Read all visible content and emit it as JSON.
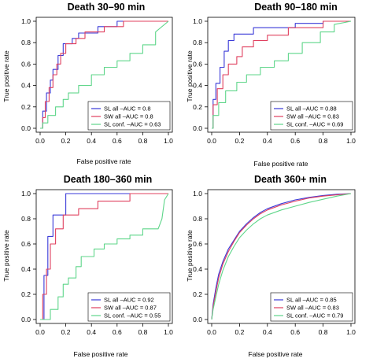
{
  "colors": {
    "sl_all": "#3a3ad8",
    "sw_all": "#e0405f",
    "sl_conf": "#5fd68a"
  },
  "chart_data": [
    {
      "type": "line",
      "title": "Death 30–90 min",
      "xlabel": "False positive rate",
      "ylabel": "True positive rate",
      "xlim": [
        0,
        1
      ],
      "ylim": [
        0,
        1
      ],
      "xticks": [
        "0.0",
        "0.2",
        "0.4",
        "0.6",
        "0.8",
        "1.0"
      ],
      "yticks": [
        "0.0",
        "0.2",
        "0.4",
        "0.6",
        "0.8",
        "1.0"
      ],
      "grid": false,
      "legend_position": "bottom-right",
      "series": [
        {
          "name": "SL all –AUC = 0.8",
          "color_key": "sl_all",
          "x": [
            0,
            0.02,
            0.02,
            0.05,
            0.05,
            0.08,
            0.08,
            0.1,
            0.1,
            0.14,
            0.14,
            0.18,
            0.18,
            0.25,
            0.25,
            0.3,
            0.3,
            0.45,
            0.45,
            0.6,
            0.6,
            0.8,
            0.8,
            1.0
          ],
          "y": [
            0,
            0,
            0.16,
            0.16,
            0.33,
            0.33,
            0.45,
            0.45,
            0.55,
            0.55,
            0.68,
            0.68,
            0.79,
            0.79,
            0.84,
            0.84,
            0.89,
            0.89,
            0.95,
            0.95,
            1.0,
            1.0,
            1.0,
            1.0
          ]
        },
        {
          "name": "SW all –AUC = 0.8",
          "color_key": "sw_all",
          "x": [
            0,
            0.02,
            0.02,
            0.04,
            0.04,
            0.07,
            0.07,
            0.1,
            0.1,
            0.13,
            0.13,
            0.16,
            0.16,
            0.2,
            0.2,
            0.28,
            0.28,
            0.35,
            0.35,
            0.5,
            0.5,
            0.65,
            0.65,
            0.8,
            0.8,
            1.0
          ],
          "y": [
            0,
            0,
            0.1,
            0.1,
            0.25,
            0.25,
            0.38,
            0.38,
            0.5,
            0.5,
            0.6,
            0.6,
            0.7,
            0.7,
            0.79,
            0.79,
            0.84,
            0.84,
            0.9,
            0.9,
            0.95,
            0.95,
            1.0,
            1.0,
            1.0,
            1.0
          ]
        },
        {
          "name": "SL conf. –AUC = 0.63",
          "color_key": "sl_conf",
          "x": [
            0,
            0.02,
            0.02,
            0.06,
            0.06,
            0.12,
            0.12,
            0.18,
            0.18,
            0.22,
            0.22,
            0.3,
            0.3,
            0.4,
            0.4,
            0.5,
            0.5,
            0.6,
            0.6,
            0.7,
            0.7,
            0.8,
            0.8,
            0.9,
            0.9,
            1.0
          ],
          "y": [
            0,
            0,
            0.05,
            0.05,
            0.12,
            0.12,
            0.2,
            0.2,
            0.27,
            0.27,
            0.33,
            0.33,
            0.4,
            0.4,
            0.5,
            0.5,
            0.57,
            0.57,
            0.63,
            0.63,
            0.7,
            0.7,
            0.78,
            0.78,
            0.9,
            1.0
          ]
        }
      ]
    },
    {
      "type": "line",
      "title": "Death 90–180 min",
      "xlabel": "False positive rate",
      "ylabel": "True positive rate",
      "xlim": [
        0,
        1
      ],
      "ylim": [
        0,
        1
      ],
      "xticks": [
        "0.0",
        "0.2",
        "0.4",
        "0.6",
        "0.8",
        "1.0"
      ],
      "yticks": [
        "0.0",
        "0.2",
        "0.4",
        "0.6",
        "0.8",
        "1.0"
      ],
      "grid": false,
      "legend_position": "bottom-right",
      "series": [
        {
          "name": "SL all –AUC = 0.88",
          "color_key": "sl_all",
          "x": [
            0,
            0.01,
            0.01,
            0.03,
            0.03,
            0.06,
            0.06,
            0.09,
            0.09,
            0.12,
            0.12,
            0.16,
            0.16,
            0.3,
            0.3,
            0.6,
            0.6,
            0.8,
            0.8,
            1.0
          ],
          "y": [
            0,
            0,
            0.27,
            0.27,
            0.42,
            0.42,
            0.57,
            0.57,
            0.72,
            0.72,
            0.82,
            0.82,
            0.88,
            0.88,
            0.94,
            0.94,
            0.98,
            0.98,
            1.0,
            1.0
          ]
        },
        {
          "name": "SW all –AUC = 0.83",
          "color_key": "sw_all",
          "x": [
            0,
            0.01,
            0.01,
            0.04,
            0.04,
            0.08,
            0.08,
            0.12,
            0.12,
            0.18,
            0.18,
            0.22,
            0.22,
            0.3,
            0.3,
            0.4,
            0.4,
            0.55,
            0.55,
            0.8,
            0.8,
            1.0
          ],
          "y": [
            0,
            0,
            0.22,
            0.22,
            0.37,
            0.37,
            0.5,
            0.5,
            0.6,
            0.6,
            0.67,
            0.67,
            0.76,
            0.76,
            0.82,
            0.82,
            0.87,
            0.87,
            0.94,
            0.94,
            1.0,
            1.0
          ]
        },
        {
          "name": "SL conf. –AUC = 0.69",
          "color_key": "sl_conf",
          "x": [
            0,
            0.01,
            0.01,
            0.05,
            0.05,
            0.1,
            0.1,
            0.18,
            0.18,
            0.25,
            0.25,
            0.35,
            0.35,
            0.45,
            0.45,
            0.55,
            0.55,
            0.65,
            0.65,
            0.78,
            0.78,
            0.88,
            0.88,
            1.0
          ],
          "y": [
            0,
            0,
            0.12,
            0.12,
            0.24,
            0.24,
            0.35,
            0.35,
            0.43,
            0.43,
            0.5,
            0.5,
            0.57,
            0.57,
            0.63,
            0.63,
            0.7,
            0.7,
            0.8,
            0.8,
            0.9,
            0.9,
            0.97,
            1.0
          ]
        }
      ]
    },
    {
      "type": "line",
      "title": "Death 180–360 min",
      "xlabel": "False positive rate",
      "ylabel": "True positive rate",
      "xlim": [
        0,
        1
      ],
      "ylim": [
        0,
        1
      ],
      "xticks": [
        "0.0",
        "0.2",
        "0.4",
        "0.6",
        "0.8",
        "1.0"
      ],
      "yticks": [
        "0.0",
        "0.2",
        "0.4",
        "0.6",
        "0.8",
        "1.0"
      ],
      "grid": false,
      "legend_position": "bottom-right",
      "series": [
        {
          "name": "SL all –AUC = 0.92",
          "color_key": "sl_all",
          "x": [
            0,
            0.03,
            0.03,
            0.06,
            0.06,
            0.1,
            0.1,
            0.2,
            0.2,
            0.25,
            0.25,
            1.0
          ],
          "y": [
            0,
            0,
            0.35,
            0.35,
            0.66,
            0.66,
            0.83,
            0.83,
            1.0,
            1.0,
            1.0,
            1.0
          ]
        },
        {
          "name": "SW all –AUC = 0.87",
          "color_key": "sw_all",
          "x": [
            0,
            0.02,
            0.02,
            0.05,
            0.05,
            0.08,
            0.08,
            0.12,
            0.12,
            0.18,
            0.18,
            0.3,
            0.3,
            0.45,
            0.45,
            0.7,
            0.7,
            1.0
          ],
          "y": [
            0,
            0,
            0.2,
            0.2,
            0.4,
            0.4,
            0.6,
            0.6,
            0.72,
            0.72,
            0.83,
            0.83,
            0.88,
            0.88,
            0.94,
            0.94,
            1.0,
            1.0
          ]
        },
        {
          "name": "SL conf. –AUC = 0.55",
          "color_key": "sl_conf",
          "x": [
            0,
            0.08,
            0.08,
            0.14,
            0.14,
            0.18,
            0.18,
            0.22,
            0.22,
            0.28,
            0.28,
            0.32,
            0.32,
            0.42,
            0.42,
            0.5,
            0.5,
            0.6,
            0.6,
            0.7,
            0.7,
            0.8,
            0.8,
            0.92,
            0.95,
            0.97,
            1.0
          ],
          "y": [
            0,
            0,
            0.08,
            0.08,
            0.18,
            0.18,
            0.28,
            0.28,
            0.33,
            0.33,
            0.42,
            0.42,
            0.5,
            0.5,
            0.56,
            0.56,
            0.6,
            0.6,
            0.64,
            0.64,
            0.67,
            0.67,
            0.72,
            0.72,
            0.8,
            0.95,
            1.0
          ]
        }
      ]
    },
    {
      "type": "line",
      "title": "Death 360+ min",
      "xlabel": "False positive rate",
      "ylabel": "True positive rate",
      "xlim": [
        0,
        1
      ],
      "ylim": [
        0,
        1
      ],
      "xticks": [
        "0.0",
        "0.2",
        "0.4",
        "0.6",
        "0.8",
        "1.0"
      ],
      "yticks": [
        "0.0",
        "0.2",
        "0.4",
        "0.6",
        "0.8",
        "1.0"
      ],
      "grid": false,
      "legend_position": "bottom-right",
      "series": [
        {
          "name": "SL all –AUC = 0.85",
          "color_key": "sl_all",
          "x": [
            0,
            0.01,
            0.03,
            0.05,
            0.08,
            0.12,
            0.16,
            0.2,
            0.25,
            0.3,
            0.35,
            0.4,
            0.5,
            0.6,
            0.7,
            0.8,
            0.9,
            1.0
          ],
          "y": [
            0,
            0.12,
            0.25,
            0.36,
            0.46,
            0.56,
            0.63,
            0.7,
            0.76,
            0.81,
            0.85,
            0.88,
            0.92,
            0.95,
            0.97,
            0.985,
            0.995,
            1.0
          ]
        },
        {
          "name": "SW all –AUC = 0.83",
          "color_key": "sw_all",
          "x": [
            0,
            0.01,
            0.03,
            0.05,
            0.08,
            0.12,
            0.16,
            0.2,
            0.25,
            0.3,
            0.35,
            0.4,
            0.5,
            0.6,
            0.7,
            0.8,
            0.9,
            1.0
          ],
          "y": [
            0,
            0.1,
            0.22,
            0.33,
            0.44,
            0.54,
            0.62,
            0.69,
            0.75,
            0.8,
            0.84,
            0.87,
            0.91,
            0.94,
            0.965,
            0.98,
            0.99,
            1.0
          ]
        },
        {
          "name": "SL conf. –AUC = 0.79",
          "color_key": "sl_conf",
          "x": [
            0,
            0.01,
            0.03,
            0.05,
            0.08,
            0.12,
            0.16,
            0.2,
            0.25,
            0.3,
            0.35,
            0.4,
            0.5,
            0.6,
            0.7,
            0.8,
            0.9,
            1.0
          ],
          "y": [
            0,
            0.08,
            0.18,
            0.28,
            0.39,
            0.5,
            0.58,
            0.65,
            0.71,
            0.76,
            0.8,
            0.83,
            0.87,
            0.9,
            0.93,
            0.955,
            0.98,
            1.0
          ]
        }
      ]
    }
  ]
}
